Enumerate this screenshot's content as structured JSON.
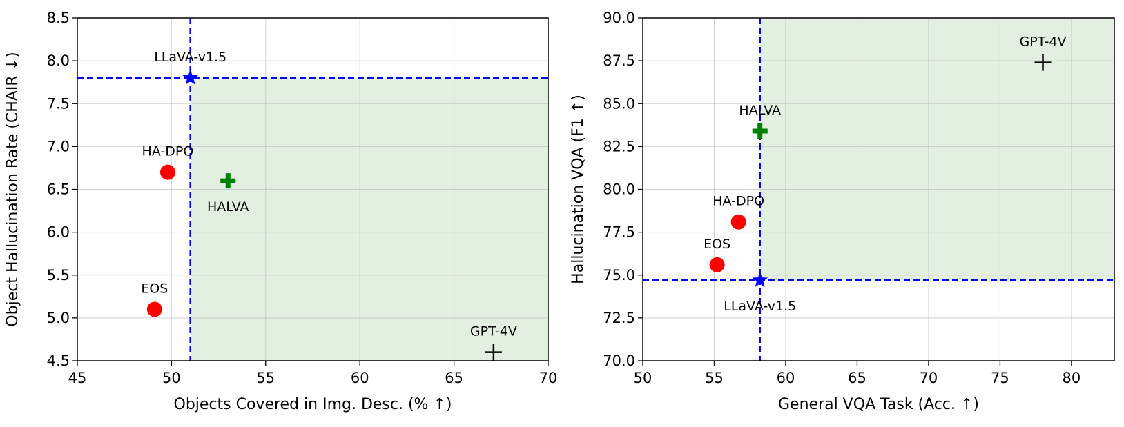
{
  "chart_data": [
    {
      "type": "scatter",
      "title": "",
      "xlabel": "Objects Covered in Img. Desc. (% ↑)",
      "ylabel": "Object Hallucination Rate (CHAIR ↓)",
      "xlim": [
        45,
        70
      ],
      "ylim": [
        4.5,
        8.5
      ],
      "xticks": [
        "45",
        "50",
        "55",
        "60",
        "65",
        "70"
      ],
      "yticks": [
        "4.5",
        "5.0",
        "5.5",
        "6.0",
        "6.5",
        "7.0",
        "7.5",
        "8.0",
        "8.5"
      ],
      "grid": true,
      "reference": {
        "x": 51.0,
        "y": 7.8,
        "color": "#0000ff"
      },
      "shaded_region": {
        "x_from": 51.0,
        "x_to": 70,
        "y_from": 4.5,
        "y_to": 7.8,
        "color": "#e3efe1"
      },
      "points": [
        {
          "name": "LLaVA-v1.5",
          "x": 51.0,
          "y": 7.8,
          "marker": "star",
          "color": "#0000ff",
          "label_pos": "above"
        },
        {
          "name": "HA-DPO",
          "x": 49.8,
          "y": 6.7,
          "marker": "circle",
          "color": "#ff0000",
          "label_pos": "above"
        },
        {
          "name": "HALVA",
          "x": 53.0,
          "y": 6.6,
          "marker": "plus-bold",
          "color": "#008000",
          "label_pos": "below"
        },
        {
          "name": "EOS",
          "x": 49.1,
          "y": 5.1,
          "marker": "circle",
          "color": "#ff0000",
          "label_pos": "above"
        },
        {
          "name": "GPT-4V",
          "x": 67.1,
          "y": 4.6,
          "marker": "plus-thin",
          "color": "#000000",
          "label_pos": "above"
        }
      ]
    },
    {
      "type": "scatter",
      "title": "",
      "xlabel": "General VQA Task (Acc. ↑)",
      "ylabel": "Hallucination VQA (F1 ↑)",
      "xlim": [
        50,
        83
      ],
      "ylim": [
        70.0,
        90.0
      ],
      "xticks": [
        "50",
        "55",
        "60",
        "65",
        "70",
        "75",
        "80"
      ],
      "yticks": [
        "70.0",
        "72.5",
        "75.0",
        "77.5",
        "80.0",
        "82.5",
        "85.0",
        "87.5",
        "90.0"
      ],
      "grid": true,
      "reference": {
        "x": 58.2,
        "y": 74.7,
        "color": "#0000ff"
      },
      "shaded_region": {
        "x_from": 58.2,
        "x_to": 83,
        "y_from": 74.7,
        "y_to": 90.0,
        "color": "#e3efe1"
      },
      "points": [
        {
          "name": "GPT-4V",
          "x": 78.0,
          "y": 87.4,
          "marker": "plus-thin",
          "color": "#000000",
          "label_pos": "above"
        },
        {
          "name": "HALVA",
          "x": 58.2,
          "y": 83.4,
          "marker": "plus-bold",
          "color": "#008000",
          "label_pos": "above"
        },
        {
          "name": "HA-DPO",
          "x": 56.7,
          "y": 78.1,
          "marker": "circle",
          "color": "#ff0000",
          "label_pos": "above"
        },
        {
          "name": "EOS",
          "x": 55.2,
          "y": 75.6,
          "marker": "circle",
          "color": "#ff0000",
          "label_pos": "above"
        },
        {
          "name": "LLaVA-v1.5",
          "x": 58.2,
          "y": 74.7,
          "marker": "star",
          "color": "#0000ff",
          "label_pos": "below"
        }
      ]
    }
  ]
}
